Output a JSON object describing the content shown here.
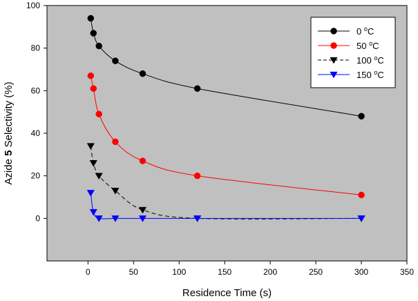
{
  "chart_data": {
    "type": "line",
    "title": "",
    "xlabel": "Residence Time (s)",
    "ylabel": {
      "prefix": "Azide ",
      "bold": "5",
      "suffix": " Selectivity (%)"
    },
    "xlim": [
      -45,
      350
    ],
    "ylim": [
      -20,
      100
    ],
    "xticks": [
      0,
      50,
      100,
      150,
      200,
      250,
      300,
      350
    ],
    "yticks": [
      0,
      20,
      40,
      60,
      80,
      100
    ],
    "grid": false,
    "background": "#c0c0c0",
    "legend_position": "top-right",
    "series": [
      {
        "name": "0 °C",
        "label_num": "0",
        "label_unit": "C",
        "color": "#000000",
        "marker": "circle",
        "line_style": "solid",
        "x": [
          3,
          6,
          12,
          30,
          60,
          120,
          300
        ],
        "y": [
          94,
          87,
          81,
          74,
          68,
          61,
          48
        ]
      },
      {
        "name": "50 °C",
        "label_num": "50",
        "label_unit": "C",
        "color": "#ff0000",
        "marker": "circle",
        "line_style": "solid",
        "x": [
          3,
          6,
          12,
          30,
          60,
          120,
          300
        ],
        "y": [
          67,
          61,
          49,
          36,
          27,
          20,
          11
        ]
      },
      {
        "name": "100 °C",
        "label_num": "100",
        "label_unit": "C",
        "color": "#000000",
        "marker": "triangle-down",
        "line_style": "dashed",
        "x": [
          3,
          6,
          12,
          30,
          60,
          120,
          300
        ],
        "y": [
          34,
          26,
          20,
          13,
          4,
          0,
          0
        ]
      },
      {
        "name": "150 °C",
        "label_num": "150",
        "label_unit": "C",
        "color": "#0000ff",
        "marker": "triangle-down",
        "line_style": "solid",
        "x": [
          3,
          6,
          12,
          30,
          60,
          120,
          300
        ],
        "y": [
          12,
          3,
          0,
          0,
          0,
          0,
          0
        ]
      }
    ]
  }
}
